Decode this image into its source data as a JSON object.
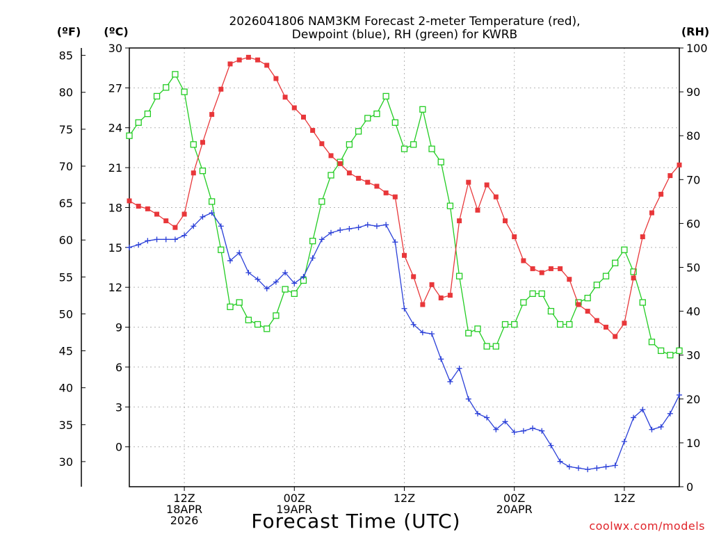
{
  "colors": {
    "temperature": "#e8373a",
    "dewpoint": "#2a3fd8",
    "rh": "#22cc22",
    "credit": "#e0242a"
  },
  "chart_data": {
    "type": "line",
    "title": [
      "2026041806 NAM3KM Forecast 2-meter Temperature (red),",
      "Dewpoint (blue), RH (green) for KWRB"
    ],
    "left_axis_c": {
      "label": "(ºC)",
      "range": [
        -3,
        30
      ],
      "ticks": [
        "30",
        "27",
        "24",
        "21",
        "18",
        "15",
        "12",
        "9",
        "6",
        "3",
        "0"
      ]
    },
    "left_axis_f": {
      "label": "(ºF)",
      "ticks": [
        "85",
        "80",
        "75",
        "70",
        "65",
        "60",
        "55",
        "50",
        "45",
        "40",
        "35",
        "30"
      ]
    },
    "right_axis_rh": {
      "label": "(RH)",
      "range": [
        0,
        100
      ],
      "ticks": [
        "100",
        "90",
        "80",
        "70",
        "60",
        "50",
        "40",
        "30",
        "20",
        "10",
        "0"
      ]
    },
    "x_axis": {
      "unit": "forecast hour (hour 0 = 2026-04-18 06Z)",
      "range": [
        0,
        60
      ],
      "ticks": [
        {
          "hour": 6,
          "lines": [
            "12Z",
            "18APR",
            "2026"
          ]
        },
        {
          "hour": 18,
          "lines": [
            "00Z",
            "19APR"
          ]
        },
        {
          "hour": 30,
          "lines": [
            "12Z"
          ]
        },
        {
          "hour": 42,
          "lines": [
            "00Z",
            "20APR"
          ]
        },
        {
          "hour": 54,
          "lines": [
            "12Z"
          ]
        }
      ],
      "label": "Forecast Time (UTC)"
    },
    "hours": [
      0,
      1,
      2,
      3,
      4,
      5,
      6,
      7,
      8,
      9,
      10,
      11,
      12,
      13,
      14,
      15,
      16,
      17,
      18,
      19,
      20,
      21,
      22,
      23,
      24,
      25,
      26,
      27,
      28,
      29,
      30,
      31,
      32,
      33,
      34,
      35,
      36,
      37,
      38,
      39,
      40,
      41,
      42,
      43,
      44,
      45,
      46,
      47,
      48,
      49,
      50,
      51,
      52,
      53,
      54,
      55,
      56,
      57,
      58,
      59,
      60
    ],
    "series": [
      {
        "name": "2-meter Temperature",
        "unit": "°C",
        "color": "red",
        "marker": "filled-square",
        "values": [
          18.5,
          18.1,
          17.9,
          17.5,
          17.0,
          16.5,
          17.5,
          20.6,
          22.9,
          25.0,
          26.9,
          28.8,
          29.1,
          29.3,
          29.1,
          28.7,
          27.7,
          26.3,
          25.5,
          24.8,
          23.8,
          22.8,
          21.9,
          21.3,
          20.6,
          20.2,
          19.9,
          19.6,
          19.1,
          18.8,
          14.4,
          12.8,
          10.7,
          12.2,
          11.2,
          11.4,
          17.0,
          19.9,
          17.8,
          19.7,
          18.8,
          17.0,
          15.8,
          14.0,
          13.4,
          13.1,
          13.4,
          13.4,
          12.6,
          10.7,
          10.2,
          9.5,
          9.0,
          8.3,
          9.3,
          12.7,
          15.8,
          17.6,
          19.0,
          20.4,
          21.2
        ]
      },
      {
        "name": "Dewpoint",
        "unit": "°C",
        "color": "blue",
        "marker": "plus",
        "values": [
          15.0,
          15.2,
          15.5,
          15.6,
          15.6,
          15.6,
          15.9,
          16.6,
          17.3,
          17.6,
          16.6,
          14.0,
          14.6,
          13.1,
          12.6,
          11.9,
          12.4,
          13.1,
          12.3,
          12.8,
          14.2,
          15.6,
          16.1,
          16.3,
          16.4,
          16.5,
          16.7,
          16.6,
          16.7,
          15.4,
          10.4,
          9.2,
          8.6,
          8.5,
          6.6,
          4.9,
          5.9,
          3.6,
          2.5,
          2.2,
          1.3,
          1.9,
          1.1,
          1.2,
          1.4,
          1.2,
          0.1,
          -1.1,
          -1.5,
          -1.6,
          -1.7,
          -1.6,
          -1.5,
          -1.4,
          0.4,
          2.2,
          2.8,
          1.3,
          1.5,
          2.5,
          3.9
        ]
      },
      {
        "name": "Relative Humidity",
        "unit": "%",
        "color": "green",
        "marker": "open-square",
        "values": [
          80,
          83,
          85,
          89,
          91,
          94,
          90,
          78,
          72,
          65,
          54,
          41,
          42,
          38,
          37,
          36,
          39,
          45,
          44,
          47,
          56,
          65,
          71,
          74,
          78,
          81,
          84,
          85,
          89,
          83,
          77,
          78,
          86,
          77,
          74,
          64,
          48,
          35,
          36,
          32,
          32,
          37,
          37,
          42,
          44,
          44,
          40,
          37,
          37,
          42,
          43,
          46,
          48,
          51,
          54,
          49,
          42,
          33,
          31,
          30,
          31
        ]
      }
    ],
    "credit": "coolwx.com/models"
  }
}
